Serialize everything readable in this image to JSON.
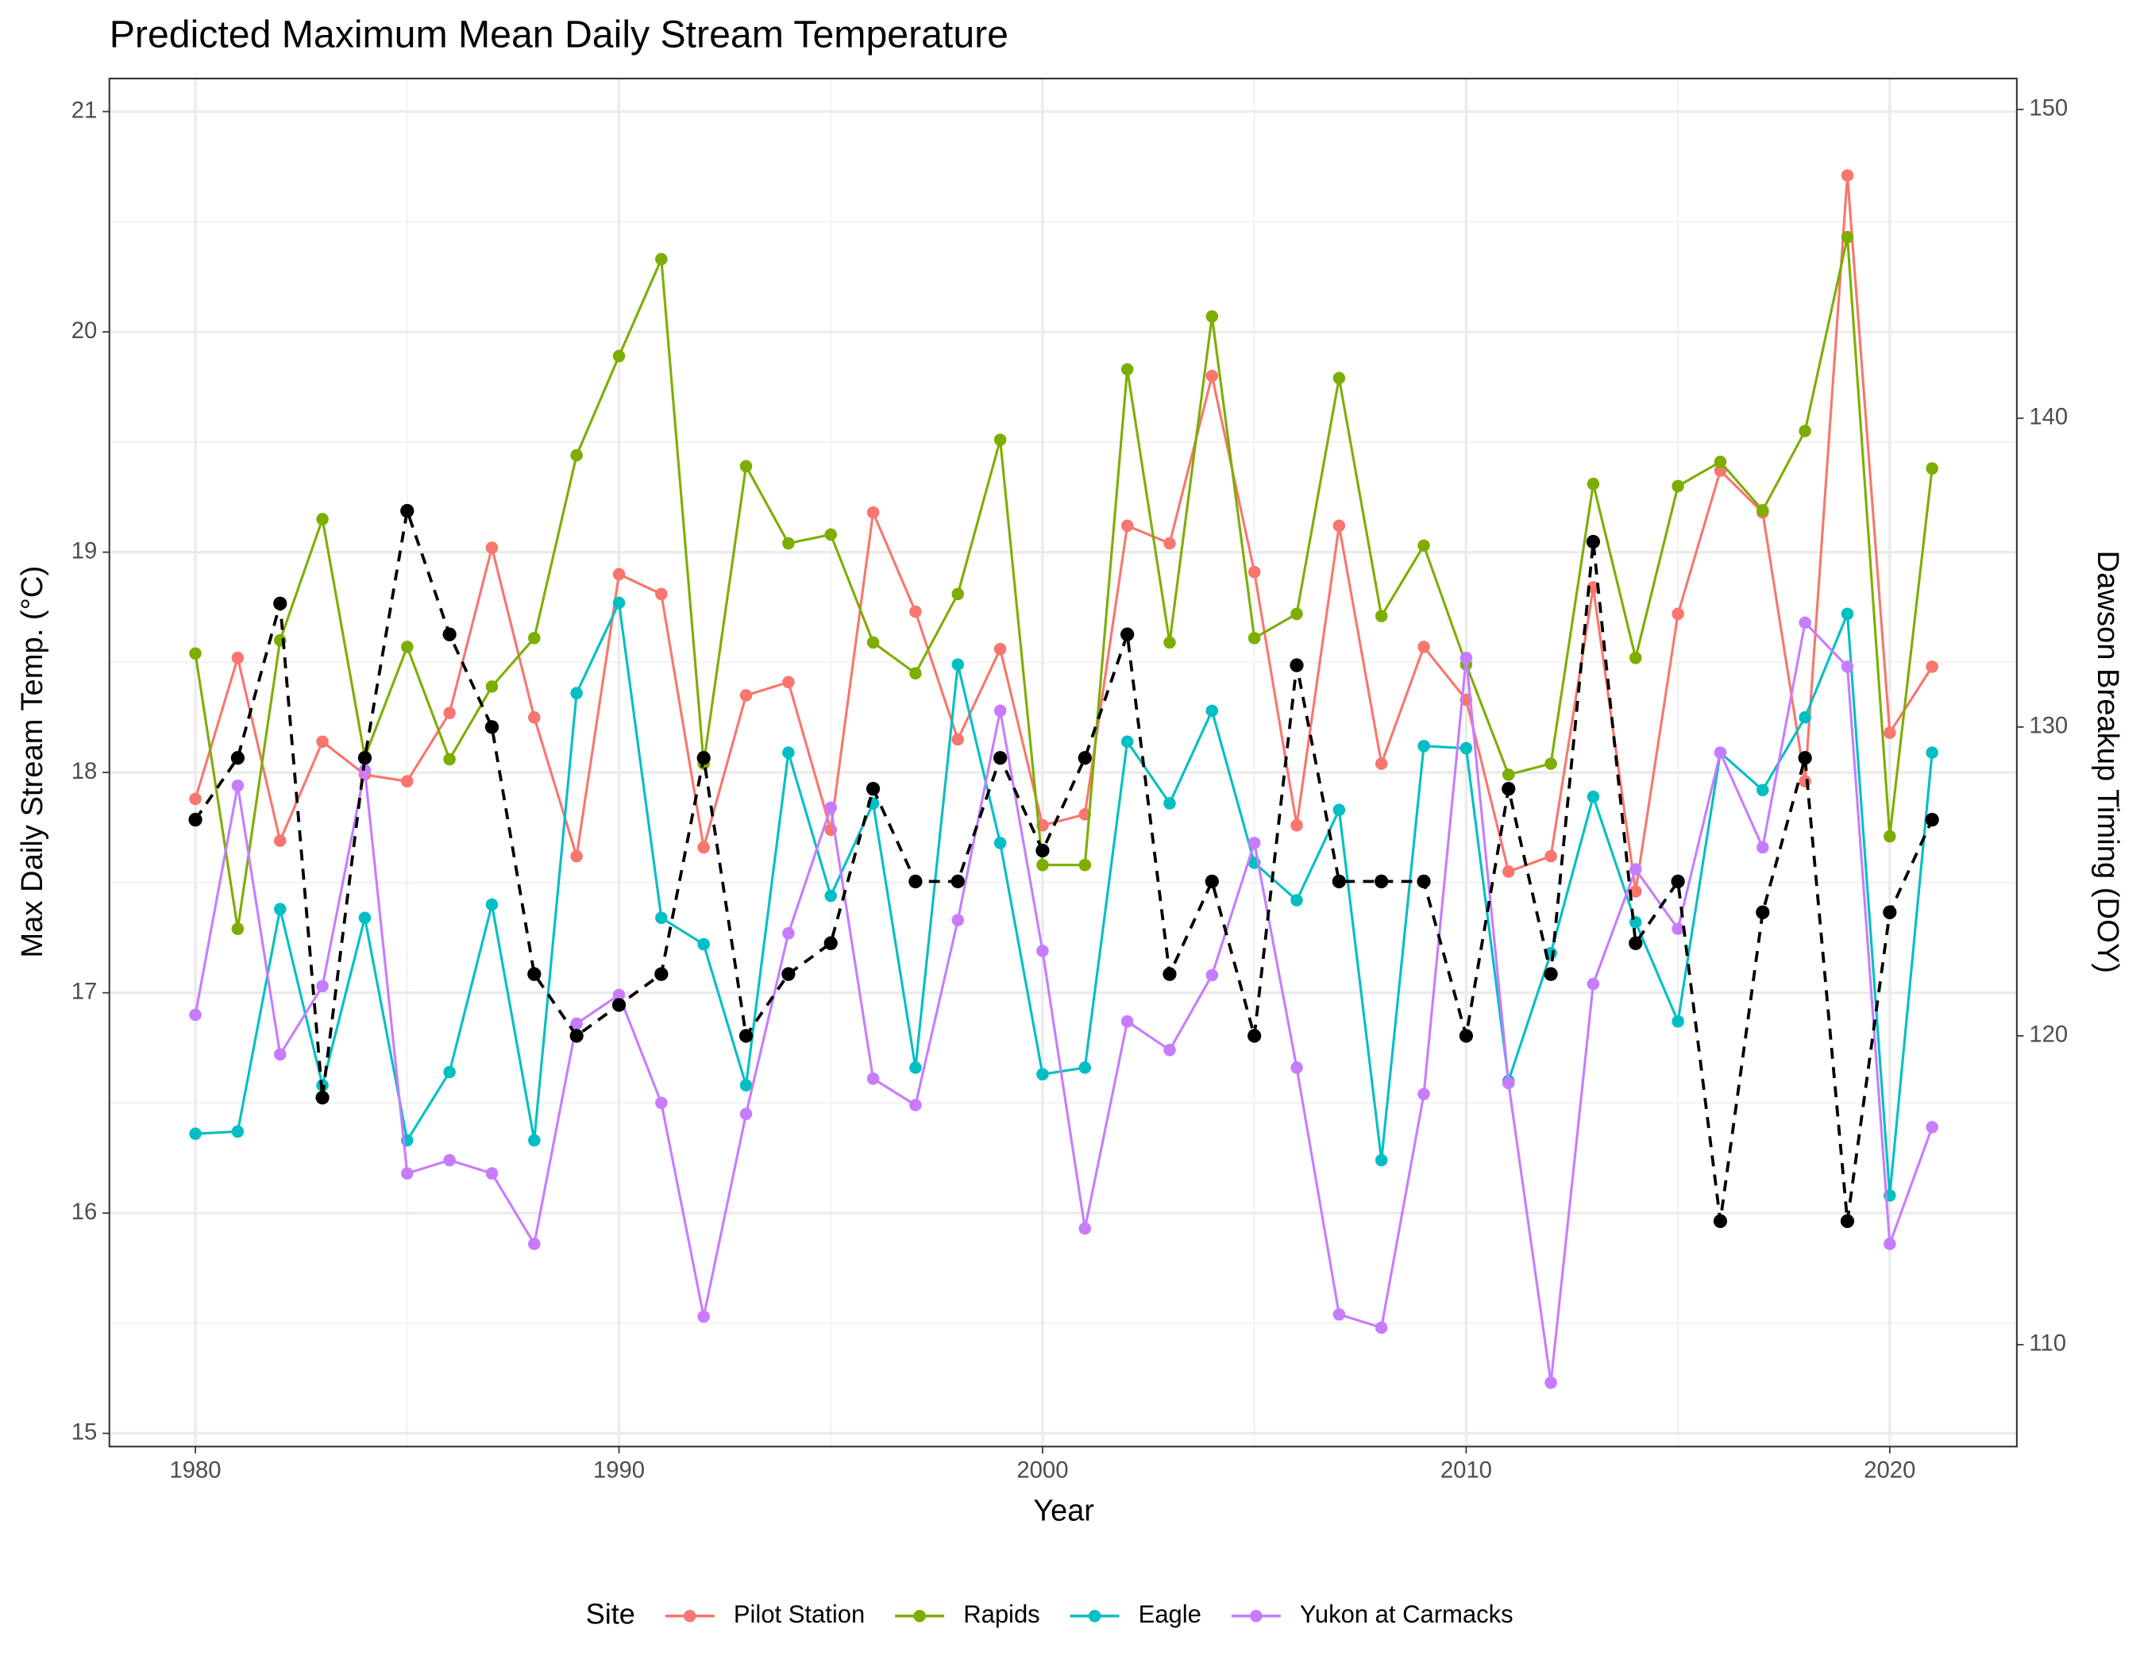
{
  "chart_data": {
    "type": "line",
    "title": "Predicted Maximum Mean Daily Stream Temperature",
    "x_label": "Year",
    "y_label": "Max Daily Stream Temp. (°C)",
    "y2_label": "Dawson Breakup Timing (DOY)",
    "legend_title": "Site",
    "legend": "bottom",
    "grid": true,
    "x": [
      1980,
      1981,
      1982,
      1983,
      1984,
      1985,
      1986,
      1987,
      1988,
      1989,
      1990,
      1991,
      1992,
      1993,
      1994,
      1995,
      1996,
      1997,
      1998,
      1999,
      2000,
      2001,
      2002,
      2003,
      2004,
      2005,
      2006,
      2007,
      2008,
      2009,
      2010,
      2011,
      2012,
      2013,
      2014,
      2015,
      2016,
      2017,
      2018,
      2019,
      2020,
      2021
    ],
    "xlim": [
      1977.97,
      2023.0
    ],
    "xticks": [
      1980,
      1990,
      2000,
      2010,
      2020
    ],
    "xminorticks": [
      1985,
      1995,
      2005,
      2015
    ],
    "ylim": [
      14.94,
      21.15
    ],
    "yticks": [
      15,
      16,
      17,
      18,
      19,
      20,
      21
    ],
    "yminorticks": [
      15.5,
      16.5,
      17.5,
      18.5,
      19.5,
      20.5
    ],
    "y2lim": [
      106.7,
      151.0
    ],
    "y2ticks": [
      110,
      120,
      130,
      140,
      150
    ],
    "series": [
      {
        "name": "Pilot Station",
        "color": "#F8766D",
        "values": [
          17.88,
          18.52,
          17.69,
          18.14,
          17.99,
          17.96,
          18.27,
          19.02,
          18.25,
          17.62,
          18.9,
          18.81,
          17.66,
          18.35,
          18.41,
          17.74,
          19.18,
          18.73,
          18.15,
          18.56,
          17.76,
          17.81,
          19.12,
          19.04,
          19.8,
          18.91,
          17.76,
          19.12,
          18.04,
          18.57,
          18.33,
          17.55,
          17.62,
          18.84,
          17.46,
          18.72,
          19.37,
          19.18,
          17.96,
          20.71,
          18.18,
          18.48
        ]
      },
      {
        "name": "Rapids",
        "color": "#7CAE00",
        "values": [
          18.54,
          17.29,
          18.6,
          19.15,
          18.07,
          18.57,
          18.06,
          18.39,
          18.61,
          19.44,
          19.89,
          20.33,
          18.04,
          19.39,
          19.04,
          19.08,
          18.59,
          18.45,
          18.81,
          19.51,
          17.58,
          17.58,
          19.83,
          18.59,
          20.07,
          18.61,
          18.72,
          19.79,
          18.71,
          19.03,
          18.49,
          17.99,
          18.04,
          19.31,
          18.52,
          19.3,
          19.41,
          19.19,
          19.55,
          20.43,
          17.71,
          19.38
        ]
      },
      {
        "name": "Eagle",
        "color": "#00BFC4",
        "values": [
          16.36,
          16.37,
          17.38,
          16.58,
          17.34,
          16.33,
          16.64,
          17.4,
          16.33,
          18.36,
          18.77,
          17.34,
          17.22,
          16.58,
          18.09,
          17.44,
          17.86,
          16.66,
          18.49,
          17.68,
          16.63,
          16.66,
          18.14,
          17.86,
          18.28,
          17.59,
          17.42,
          17.83,
          16.24,
          18.12,
          18.11,
          16.6,
          17.18,
          17.89,
          17.32,
          16.87,
          18.09,
          17.92,
          18.25,
          18.72,
          16.08,
          18.09
        ]
      },
      {
        "name": "Yukon at Carmacks",
        "color": "#C77CFF",
        "values": [
          16.9,
          17.94,
          16.72,
          17.03,
          18.01,
          16.18,
          16.24,
          16.18,
          15.86,
          16.86,
          16.99,
          16.5,
          15.53,
          16.45,
          17.27,
          17.84,
          16.61,
          16.49,
          17.33,
          18.28,
          17.19,
          15.93,
          16.87,
          16.74,
          17.08,
          17.68,
          16.66,
          15.54,
          15.48,
          16.54,
          18.52,
          16.59,
          15.23,
          17.04,
          17.56,
          17.29,
          18.09,
          17.66,
          18.68,
          18.48,
          15.86,
          16.39
        ]
      },
      {
        "color": "#000000",
        "dash": true,
        "axis": "y2",
        "values": [
          127,
          129,
          134,
          118,
          129,
          137,
          133,
          130,
          122,
          120,
          121,
          122,
          129,
          120,
          122,
          123,
          128,
          125,
          125,
          129,
          126,
          129,
          133,
          122,
          125,
          120,
          132,
          125,
          125,
          125,
          120,
          128,
          122,
          136,
          123,
          125,
          114,
          124,
          129,
          114,
          124,
          127
        ]
      }
    ]
  }
}
